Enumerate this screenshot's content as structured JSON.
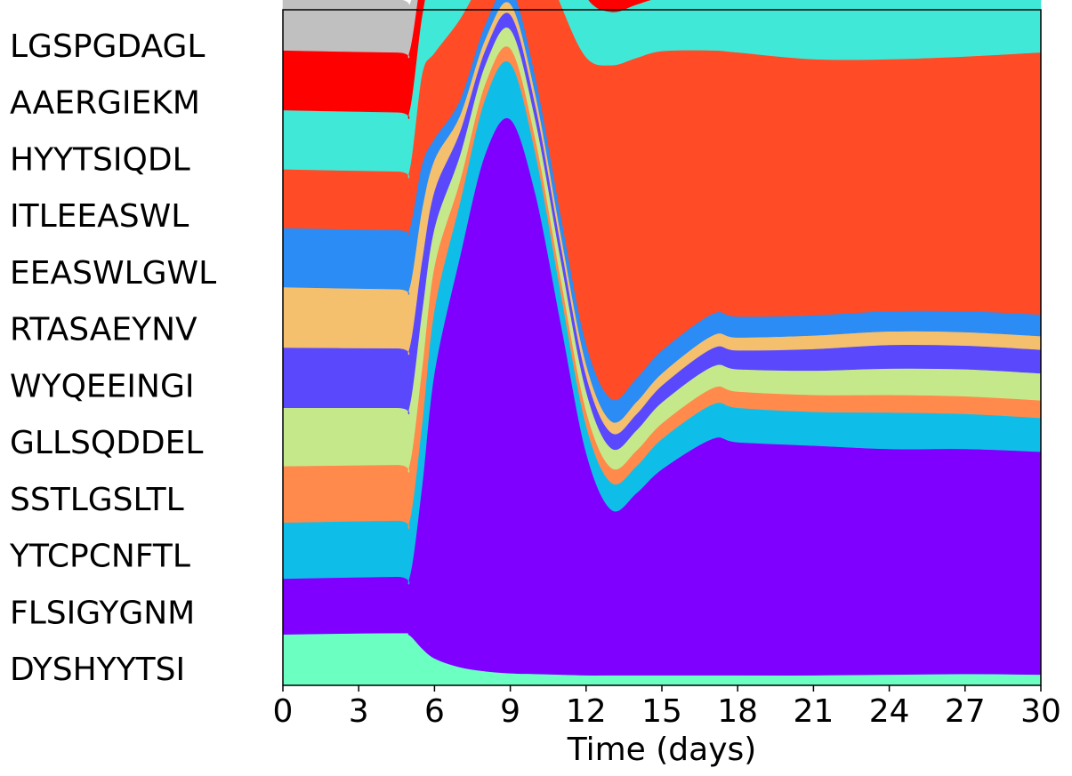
{
  "chart_data": {
    "type": "area",
    "subtype": "stacked-fraction",
    "xlabel": "Time (days)",
    "ylabel": "",
    "xlim": [
      0,
      30
    ],
    "ylim": [
      0,
      1
    ],
    "x_ticks": [
      0,
      3,
      6,
      9,
      12,
      15,
      18,
      21,
      24,
      27,
      30
    ],
    "row_labels": [
      "LGSPGDAGL",
      "AAERGIEKM",
      "HYYTSIQDL",
      "ITLEEASWL",
      "EEASWLGWL",
      "RTASAEYNV",
      "WYQEEINGI",
      "GLLSQDDEL",
      "SSTLGSLTL",
      "YTCPCNFTL",
      "FLSIGYGNM",
      "DYSHYYTSI"
    ],
    "x": [
      0,
      4.5,
      5,
      5.5,
      6,
      7,
      8,
      9,
      10,
      11,
      12,
      13,
      14,
      15,
      17,
      18,
      21,
      24,
      27,
      30
    ],
    "series": [
      {
        "color": "#6bffc2",
        "values": [
          0.0755,
          0.0775,
          0.0745,
          0.055,
          0.04,
          0.027,
          0.021,
          0.018,
          0.017,
          0.016,
          0.015,
          0.015,
          0.015,
          0.015,
          0.015,
          0.015,
          0.015,
          0.016,
          0.017,
          0.016
        ]
      },
      {
        "color": "#8000ff",
        "values": [
          0.0825,
          0.0835,
          0.0845,
          0.239,
          0.424,
          0.607,
          0.765,
          0.82,
          0.71,
          0.52,
          0.33,
          0.245,
          0.27,
          0.305,
          0.35,
          0.345,
          0.34,
          0.334,
          0.333,
          0.33
        ]
      },
      {
        "color": "#0fbee8",
        "values": [
          0.083,
          0.083,
          0.083,
          0.092,
          0.0935,
          0.08,
          0.082,
          0.083,
          0.06,
          0.045,
          0.04,
          0.04,
          0.04,
          0.045,
          0.051,
          0.051,
          0.05,
          0.054,
          0.052,
          0.05
        ]
      },
      {
        "color": "#ff8a4c",
        "values": [
          0.0835,
          0.0825,
          0.0835,
          0.082,
          0.064,
          0.032,
          0.022,
          0.022,
          0.021,
          0.021,
          0.022,
          0.022,
          0.023,
          0.023,
          0.024,
          0.024,
          0.025,
          0.026,
          0.026,
          0.026
        ]
      },
      {
        "color": "#c5e98a",
        "values": [
          0.0865,
          0.0845,
          0.0865,
          0.084,
          0.056,
          0.038,
          0.028,
          0.028,
          0.028,
          0.028,
          0.029,
          0.029,
          0.03,
          0.031,
          0.032,
          0.033,
          0.036,
          0.039,
          0.04,
          0.04
        ]
      },
      {
        "color": "#5a48fd",
        "values": [
          0.089,
          0.088,
          0.087,
          0.076,
          0.055,
          0.035,
          0.022,
          0.022,
          0.022,
          0.022,
          0.023,
          0.023,
          0.024,
          0.025,
          0.027,
          0.028,
          0.032,
          0.035,
          0.035,
          0.035
        ]
      },
      {
        "color": "#f4c06e",
        "values": [
          0.0895,
          0.0875,
          0.0885,
          0.076,
          0.046,
          0.024,
          0.016,
          0.016,
          0.016,
          0.016,
          0.017,
          0.017,
          0.018,
          0.018,
          0.019,
          0.019,
          0.02,
          0.02,
          0.02,
          0.02
        ]
      },
      {
        "color": "#2a8cf4",
        "values": [
          0.0875,
          0.0875,
          0.0875,
          0.067,
          0.031,
          0.023,
          0.022,
          0.024,
          0.026,
          0.028,
          0.03,
          0.033,
          0.035,
          0.034,
          0.032,
          0.031,
          0.03,
          0.03,
          0.031,
          0.032
        ]
      },
      {
        "color": "#ff4b26",
        "values": [
          0.087,
          0.087,
          0.087,
          0.133,
          0.127,
          0.12,
          0.075,
          0.075,
          0.214,
          0.312,
          0.424,
          0.494,
          0.474,
          0.443,
          0.39,
          0.391,
          0.379,
          0.373,
          0.377,
          0.388
        ]
      },
      {
        "color": "#40e8d8",
        "values": [
          0.0875,
          0.0875,
          0.0875,
          0.086,
          0.136,
          0.168,
          0.196,
          0.189,
          0.141,
          0.109,
          0.09,
          0.079,
          0.079,
          0.079,
          0.081,
          0.082,
          0.09,
          0.09,
          0.086,
          0.083
        ]
      },
      {
        "color": "#ff0000",
        "values": [
          0.0885,
          0.0885,
          0.0885,
          0.066,
          0.055,
          0.04,
          0.03,
          0.026,
          0.021,
          0.025,
          0.04,
          0.04,
          0.04,
          0.04,
          0.04,
          0.04,
          0.04,
          0.04,
          0.04,
          0.04
        ]
      },
      {
        "color": "#c0c0c0",
        "values": [
          0.0785,
          0.0785,
          0.0675,
          0.023,
          0.0025,
          0.0,
          0.0,
          0.0,
          0.0,
          0.0,
          0.014,
          0.016,
          0.016,
          0.016,
          0.016,
          0.016,
          0.016,
          0.016,
          0.016,
          0.016
        ]
      }
    ],
    "grid": false,
    "legend": "none"
  }
}
